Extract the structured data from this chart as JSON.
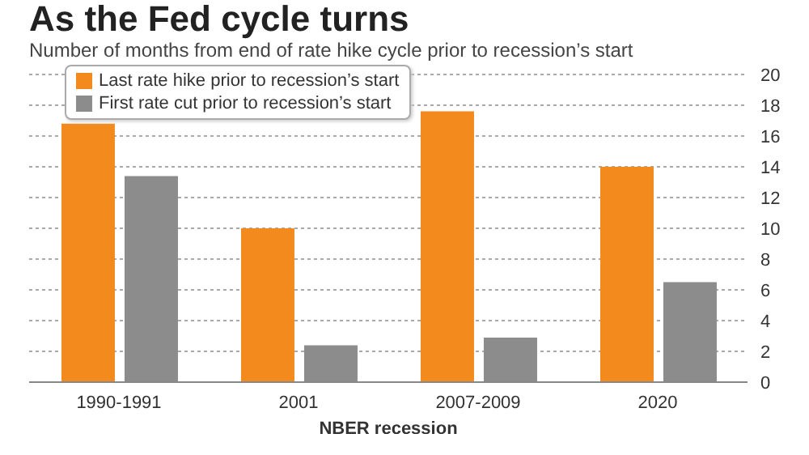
{
  "chart_data": {
    "type": "bar",
    "title": "As the Fed cycle turns",
    "subtitle": "Number of months from end of rate hike cycle prior to recession’s start",
    "xlabel": "NBER recession",
    "categories": [
      "1990-1991",
      "2001",
      "2007-2009",
      "2020"
    ],
    "series": [
      {
        "name": "Last rate hike prior to recession’s start",
        "color": "#f28a1e",
        "values": [
          16.8,
          10,
          17.6,
          14
        ]
      },
      {
        "name": "First rate cut prior to recession’s start",
        "color": "#8c8c8c",
        "values": [
          13.4,
          2.4,
          2.9,
          6.5
        ]
      }
    ],
    "ylim": [
      0,
      20
    ],
    "yticks": [
      0,
      2,
      4,
      6,
      8,
      10,
      12,
      14,
      16,
      18,
      20
    ],
    "grid": "y",
    "legend": "top left"
  }
}
